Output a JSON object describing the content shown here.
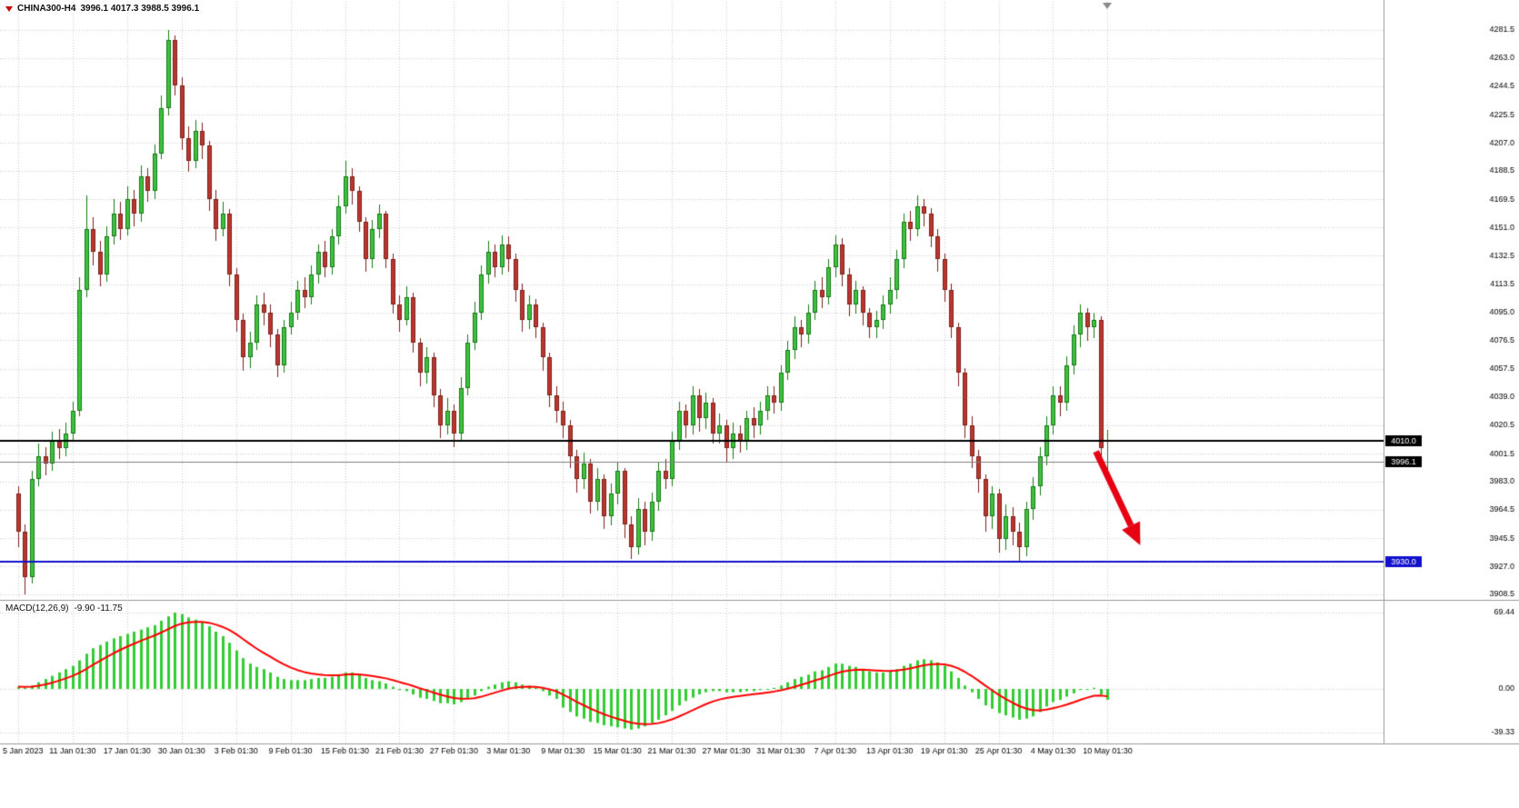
{
  "header": {
    "symbol": "CHINA300-H4",
    "ohlc": "3996.1 4017.3 3988.5 3996.1",
    "open": "3996.1",
    "high": "4017.3",
    "low": "3988.5",
    "close": "3996.1"
  },
  "price_axis": {
    "ticks": [
      "4281.5",
      "4263.0",
      "4244.5",
      "4225.5",
      "4207.0",
      "4188.5",
      "4169.5",
      "4151.0",
      "4132.5",
      "4113.5",
      "4095.0",
      "4076.5",
      "4057.5",
      "4039.0",
      "4020.5",
      "4001.5",
      "3983.0",
      "3964.5",
      "3945.5",
      "3927.0",
      "3908.5"
    ],
    "badges": [
      {
        "text": "4010.0",
        "value": 4010.0,
        "bg": "#000000"
      },
      {
        "text": "3996.1",
        "value": 3996.1,
        "bg": "#000000"
      },
      {
        "text": "3930.0",
        "value": 3930.0,
        "bg": "#1111cc"
      }
    ]
  },
  "lines": {
    "hlines": [
      {
        "name": "resistance-line",
        "value": 4010.0,
        "color": "#000000",
        "width": 2
      },
      {
        "name": "current-price-line",
        "value": 3996.1,
        "color": "#808080",
        "width": 1
      },
      {
        "name": "support-line",
        "value": 3930.0,
        "color": "#1111cc",
        "width": 2
      }
    ]
  },
  "time_axis": {
    "step": 8,
    "labels": [
      "5 Jan 2023",
      "11 Jan 01:30",
      "17 Jan 01:30",
      "30 Jan 01:30",
      "3 Feb 01:30",
      "9 Feb 01:30",
      "15 Feb 01:30",
      "21 Feb 01:30",
      "27 Feb 01:30",
      "3 Mar 01:30",
      "9 Mar 01:30",
      "15 Mar 01:30",
      "21 Mar 01:30",
      "27 Mar 01:30",
      "31 Mar 01:30",
      "7 Apr 01:30",
      "13 Apr 01:30",
      "19 Apr 01:30",
      "25 Apr 01:30",
      "4 May 01:30",
      "10 May 01:30"
    ]
  },
  "annotations": {
    "arrow": {
      "type": "arrow",
      "direction": "down-right",
      "color": "#e60012",
      "from": {
        "i": 158.3,
        "price": 4003
      },
      "to": {
        "i": 164.8,
        "price": 3941
      }
    },
    "shift_marker": {
      "i": 160,
      "color": "#8a8a8a"
    }
  },
  "macd": {
    "label": "MACD(12,26,9)",
    "values": "-9.90 -11.75",
    "main_value": -9.9,
    "signal_value": -11.75,
    "axis_labels": [
      {
        "text": "69.44",
        "value": 69.44
      },
      {
        "text": "0.00",
        "value": 0
      },
      {
        "text": "-39.33",
        "value": -39.33
      }
    ],
    "histogram_color": "#32CD32",
    "signal_color": "#ff0000"
  },
  "chart_data": [
    {
      "type": "candlestick",
      "title": "CHINA300-H4",
      "ylim": [
        3908.5,
        4281.5
      ],
      "grid": "dotted",
      "grid_color": "#c8c8c8",
      "up_fill": "#3fc13f",
      "up_border": "#157a15",
      "down_fill": "#bb362e",
      "down_border": "#7c221c",
      "ohlc": [
        [
          3975,
          3980,
          3940,
          3950
        ],
        [
          3950,
          3955,
          3908.5,
          3920
        ],
        [
          3920,
          3990,
          3916,
          3985
        ],
        [
          3985,
          4008,
          3980,
          4000
        ],
        [
          4000,
          4006,
          3987,
          3995
        ],
        [
          3995,
          4016,
          3990,
          4010
        ],
        [
          4010,
          4018,
          3998,
          4005
        ],
        [
          4005,
          4022,
          4000,
          4015
        ],
        [
          4015,
          4036,
          4010,
          4030
        ],
        [
          4030,
          4118,
          4026,
          4110
        ],
        [
          4110,
          4172,
          4105,
          4150
        ],
        [
          4150,
          4158,
          4126,
          4135
        ],
        [
          4135,
          4142,
          4112,
          4120
        ],
        [
          4120,
          4152,
          4115,
          4145
        ],
        [
          4145,
          4170,
          4140,
          4160
        ],
        [
          4160,
          4168,
          4143,
          4150
        ],
        [
          4150,
          4178,
          4146,
          4170
        ],
        [
          4170,
          4176,
          4152,
          4160
        ],
        [
          4160,
          4192,
          4155,
          4185
        ],
        [
          4185,
          4190,
          4168,
          4175
        ],
        [
          4175,
          4206,
          4170,
          4200
        ],
        [
          4200,
          4238,
          4196,
          4230
        ],
        [
          4230,
          4281.5,
          4225,
          4275
        ],
        [
          4275,
          4278,
          4238,
          4245
        ],
        [
          4245,
          4250,
          4202,
          4210
        ],
        [
          4210,
          4218,
          4188,
          4195
        ],
        [
          4195,
          4222,
          4190,
          4215
        ],
        [
          4215,
          4220,
          4196,
          4205
        ],
        [
          4205,
          4208,
          4162,
          4170
        ],
        [
          4170,
          4176,
          4142,
          4150
        ],
        [
          4150,
          4168,
          4145,
          4160
        ],
        [
          4160,
          4163,
          4112,
          4120
        ],
        [
          4120,
          4124,
          4082,
          4090
        ],
        [
          4090,
          4094,
          4056,
          4065
        ],
        [
          4065,
          4082,
          4058,
          4075
        ],
        [
          4075,
          4106,
          4070,
          4100
        ],
        [
          4100,
          4108,
          4086,
          4095
        ],
        [
          4095,
          4100,
          4072,
          4080
        ],
        [
          4080,
          4084,
          4052,
          4060
        ],
        [
          4060,
          4090,
          4055,
          4085
        ],
        [
          4085,
          4102,
          4080,
          4095
        ],
        [
          4095,
          4116,
          4090,
          4110
        ],
        [
          4110,
          4118,
          4098,
          4105
        ],
        [
          4105,
          4126,
          4100,
          4120
        ],
        [
          4120,
          4140,
          4114,
          4135
        ],
        [
          4135,
          4142,
          4118,
          4125
        ],
        [
          4125,
          4150,
          4120,
          4145
        ],
        [
          4145,
          4172,
          4140,
          4165
        ],
        [
          4165,
          4195,
          4160,
          4185
        ],
        [
          4185,
          4190,
          4166,
          4175
        ],
        [
          4175,
          4178,
          4148,
          4155
        ],
        [
          4155,
          4158,
          4122,
          4130
        ],
        [
          4130,
          4156,
          4124,
          4150
        ],
        [
          4150,
          4166,
          4144,
          4160
        ],
        [
          4160,
          4162,
          4124,
          4130
        ],
        [
          4130,
          4134,
          4094,
          4100
        ],
        [
          4100,
          4106,
          4082,
          4090
        ],
        [
          4090,
          4112,
          4086,
          4105
        ],
        [
          4105,
          4108,
          4068,
          4075
        ],
        [
          4075,
          4078,
          4046,
          4055
        ],
        [
          4055,
          4072,
          4048,
          4065
        ],
        [
          4065,
          4068,
          4032,
          4040
        ],
        [
          4040,
          4044,
          4012,
          4020
        ],
        [
          4020,
          4038,
          4014,
          4030
        ],
        [
          4030,
          4034,
          4006,
          4015
        ],
        [
          4015,
          4052,
          4010,
          4045
        ],
        [
          4045,
          4080,
          4040,
          4075
        ],
        [
          4075,
          4102,
          4070,
          4095
        ],
        [
          4095,
          4126,
          4090,
          4120
        ],
        [
          4120,
          4142,
          4114,
          4135
        ],
        [
          4135,
          4140,
          4118,
          4125
        ],
        [
          4125,
          4146,
          4120,
          4140
        ],
        [
          4140,
          4145,
          4122,
          4130
        ],
        [
          4130,
          4134,
          4102,
          4110
        ],
        [
          4110,
          4114,
          4082,
          4090
        ],
        [
          4090,
          4106,
          4084,
          4100
        ],
        [
          4100,
          4104,
          4078,
          4085
        ],
        [
          4085,
          4088,
          4056,
          4065
        ],
        [
          4065,
          4068,
          4032,
          4040
        ],
        [
          4040,
          4046,
          4022,
          4030
        ],
        [
          4030,
          4036,
          4012,
          4020
        ],
        [
          4020,
          4024,
          3992,
          4000
        ],
        [
          4000,
          4004,
          3976,
          3985
        ],
        [
          3985,
          4002,
          3978,
          3995
        ],
        [
          3995,
          3998,
          3962,
          3970
        ],
        [
          3970,
          3992,
          3964,
          3985
        ],
        [
          3985,
          3988,
          3952,
          3960
        ],
        [
          3960,
          3982,
          3954,
          3975
        ],
        [
          3975,
          3996,
          3968,
          3990
        ],
        [
          3990,
          3992,
          3946,
          3955
        ],
        [
          3955,
          3960,
          3932,
          3940
        ],
        [
          3940,
          3972,
          3935,
          3965
        ],
        [
          3965,
          3970,
          3941,
          3950
        ],
        [
          3950,
          3976,
          3944,
          3970
        ],
        [
          3970,
          3996,
          3964,
          3990
        ],
        [
          3990,
          3998,
          3978,
          3985
        ],
        [
          3985,
          4016,
          3980,
          4010
        ],
        [
          4010,
          4036,
          4004,
          4030
        ],
        [
          4030,
          4034,
          4012,
          4020
        ],
        [
          4020,
          4046,
          4014,
          4040
        ],
        [
          4040,
          4044,
          4016,
          4025
        ],
        [
          4025,
          4042,
          4018,
          4035
        ],
        [
          4035,
          4038,
          4008,
          4015
        ],
        [
          4015,
          4028,
          4008,
          4020
        ],
        [
          4020,
          4024,
          3996,
          4005
        ],
        [
          4005,
          4022,
          3998,
          4015
        ],
        [
          4015,
          4020,
          4002,
          4010
        ],
        [
          4010,
          4030,
          4004,
          4025
        ],
        [
          4025,
          4032,
          4012,
          4020
        ],
        [
          4020,
          4036,
          4014,
          4030
        ],
        [
          4030,
          4046,
          4024,
          4040
        ],
        [
          4040,
          4046,
          4028,
          4035
        ],
        [
          4035,
          4060,
          4030,
          4055
        ],
        [
          4055,
          4076,
          4050,
          4070
        ],
        [
          4070,
          4092,
          4064,
          4085
        ],
        [
          4085,
          4090,
          4072,
          4080
        ],
        [
          4080,
          4100,
          4074,
          4095
        ],
        [
          4095,
          4116,
          4090,
          4110
        ],
        [
          4110,
          4118,
          4098,
          4105
        ],
        [
          4105,
          4130,
          4100,
          4125
        ],
        [
          4125,
          4146,
          4118,
          4140
        ],
        [
          4140,
          4144,
          4112,
          4120
        ],
        [
          4120,
          4124,
          4092,
          4100
        ],
        [
          4100,
          4116,
          4094,
          4110
        ],
        [
          4110,
          4112,
          4086,
          4095
        ],
        [
          4095,
          4098,
          4078,
          4085
        ],
        [
          4085,
          4096,
          4078,
          4090
        ],
        [
          4090,
          4106,
          4084,
          4100
        ],
        [
          4100,
          4118,
          4094,
          4110
        ],
        [
          4110,
          4136,
          4104,
          4130
        ],
        [
          4130,
          4160,
          4124,
          4155
        ],
        [
          4155,
          4162,
          4142,
          4150
        ],
        [
          4150,
          4172,
          4145,
          4165
        ],
        [
          4165,
          4170,
          4152,
          4160
        ],
        [
          4160,
          4164,
          4138,
          4145
        ],
        [
          4145,
          4150,
          4122,
          4130
        ],
        [
          4130,
          4134,
          4102,
          4110
        ],
        [
          4110,
          4114,
          4078,
          4085
        ],
        [
          4085,
          4088,
          4046,
          4055
        ],
        [
          4055,
          4058,
          4012,
          4020
        ],
        [
          4020,
          4026,
          3992,
          4000
        ],
        [
          4000,
          4004,
          3976,
          3985
        ],
        [
          3985,
          3988,
          3950,
          3960
        ],
        [
          3960,
          3980,
          3952,
          3975
        ],
        [
          3975,
          3978,
          3936,
          3945
        ],
        [
          3945,
          3968,
          3938,
          3960
        ],
        [
          3960,
          3966,
          3941,
          3950
        ],
        [
          3950,
          3956,
          3931,
          3940
        ],
        [
          3940,
          3970,
          3934,
          3965
        ],
        [
          3965,
          3986,
          3958,
          3980
        ],
        [
          3980,
          4006,
          3974,
          4000
        ],
        [
          4000,
          4026,
          3994,
          4020
        ],
        [
          4020,
          4046,
          4014,
          4040
        ],
        [
          4040,
          4046,
          4026,
          4035
        ],
        [
          4035,
          4066,
          4030,
          4060
        ],
        [
          4060,
          4086,
          4054,
          4080
        ],
        [
          4080,
          4100,
          4072,
          4095
        ],
        [
          4095,
          4098,
          4076,
          4085
        ],
        [
          4085,
          4095,
          4078,
          4090
        ],
        [
          4090,
          4092,
          3998,
          4005
        ],
        [
          3996.1,
          4017.3,
          3988.5,
          3996.1
        ]
      ]
    },
    {
      "type": "bar",
      "name": "MACD histogram",
      "signal_period": 9,
      "ylim": [
        -48,
        78
      ],
      "values": [
        2,
        1,
        3,
        6,
        9,
        12,
        15,
        18,
        21,
        26,
        32,
        37,
        40,
        43,
        46,
        48,
        50,
        52,
        54,
        56,
        58,
        62,
        66,
        69.4,
        68,
        65,
        63,
        61,
        57,
        52,
        48,
        42,
        35,
        28,
        23,
        20,
        18,
        15,
        11,
        9,
        8,
        8,
        8,
        9,
        10,
        10,
        11,
        13,
        15,
        15,
        13,
        10,
        8,
        7,
        5,
        2,
        -1,
        -2,
        -5,
        -8,
        -9,
        -11,
        -13,
        -13,
        -14,
        -12,
        -9,
        -6,
        -2,
        2,
        4,
        6,
        7,
        6,
        4,
        3,
        1,
        -2,
        -6,
        -9,
        -17,
        -21,
        -25,
        -27,
        -30,
        -31,
        -33,
        -34,
        -35,
        -36,
        -37,
        -36,
        -34,
        -31,
        -28,
        -24,
        -20,
        -15,
        -11,
        -8,
        -5,
        -3,
        -2,
        -2,
        -3,
        -3,
        -3,
        -2,
        -2,
        -1,
        0,
        1,
        3,
        6,
        9,
        11,
        13,
        16,
        17,
        20,
        23,
        23,
        21,
        20,
        18,
        16,
        15,
        15,
        16,
        18,
        21,
        23,
        26,
        27,
        26,
        24,
        21,
        16,
        10,
        3,
        -3,
        -9,
        -15,
        -18,
        -22,
        -24,
        -26,
        -28,
        -27,
        -25,
        -21,
        -16,
        -12,
        -10,
        -7,
        -4,
        -1,
        0,
        1,
        -5,
        -9.9
      ]
    }
  ]
}
